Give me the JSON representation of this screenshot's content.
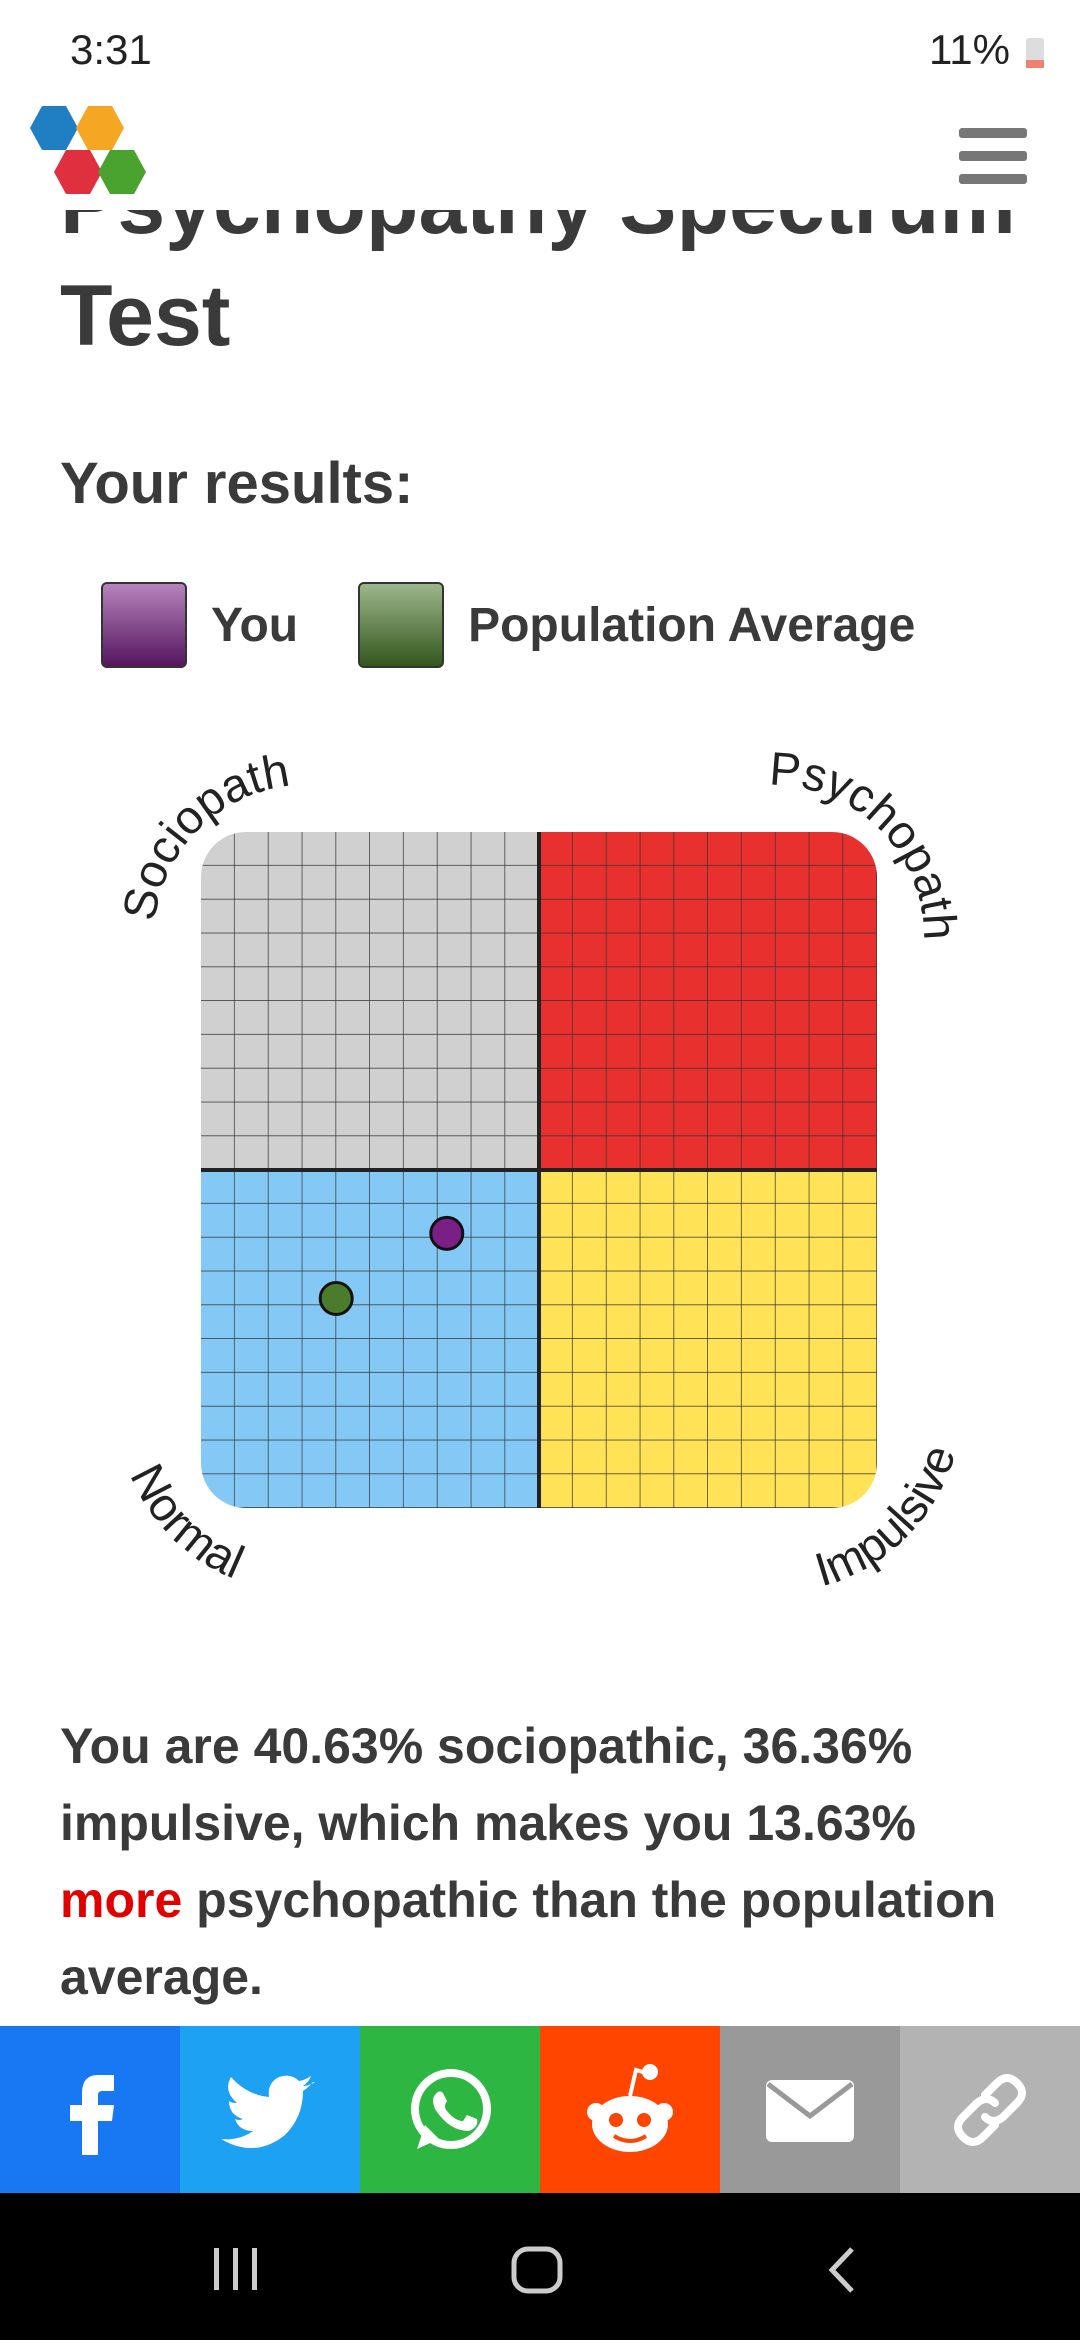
{
  "status_bar": {
    "time": "3:31",
    "battery": "11%"
  },
  "title": "Psychopathy Spectrum Test",
  "results_heading": "Your results:",
  "chart_data": {
    "type": "scatter",
    "xlim": [
      0,
      100
    ],
    "ylim": [
      0,
      100
    ],
    "grid": true,
    "quadrants": [
      {
        "label": "Sociopath",
        "color": "#d0d0d0"
      },
      {
        "label": "Psychopath",
        "color": "#e8302f"
      },
      {
        "label": "Normal",
        "color": "#84c9f5"
      },
      {
        "label": "Impulsive",
        "color": "#ffe255"
      }
    ],
    "series": [
      {
        "name": "You",
        "color": "#7a1f86",
        "x": [
          36.36
        ],
        "values": [
          40.63
        ]
      },
      {
        "name": "Population Average",
        "color": "#4b7c2b",
        "x": [
          20
        ],
        "values": [
          31
        ]
      }
    ]
  },
  "result": {
    "before": "You are 40.63% sociopathic, 36.36% impulsive, which makes you 13.63% ",
    "highlight": "more",
    "after": " psychopathic than the population average."
  }
}
